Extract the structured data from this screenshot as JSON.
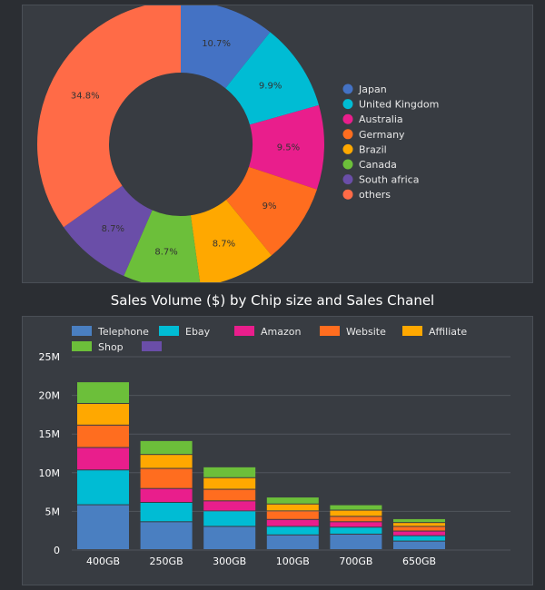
{
  "chart_data": [
    {
      "type": "pie",
      "title": "",
      "slices": [
        {
          "name": "Japan",
          "value": 10.7,
          "label": "10.7%",
          "color": "#4472c4"
        },
        {
          "name": "United Kingdom",
          "value": 9.9,
          "label": "9.9%",
          "color": "#00bcd4"
        },
        {
          "name": "Australia",
          "value": 9.5,
          "label": "9.5%",
          "color": "#e91e8c"
        },
        {
          "name": "Germany",
          "value": 9,
          "label": "9%",
          "color": "#ff6d1f"
        },
        {
          "name": "Brazil",
          "value": 8.7,
          "label": "8.7%",
          "color": "#ffa800"
        },
        {
          "name": "Canada",
          "value": 8.7,
          "label": "8.7%",
          "color": "#6cbf3a"
        },
        {
          "name": "South africa",
          "value": 8.7,
          "label": "8.7%",
          "color": "#6a4ea8"
        },
        {
          "name": "others",
          "value": 34.8,
          "label": "34.8%",
          "color": "#ff6b47"
        }
      ],
      "hole": 0.5,
      "legend_position": "right"
    },
    {
      "type": "bar",
      "stacked": true,
      "title": "Sales Volume ($) by Chip size and Sales Chanel",
      "categories": [
        "400GB",
        "250GB",
        "300GB",
        "100GB",
        "700GB",
        "650GB"
      ],
      "y_ticks": [
        "0",
        "5M",
        "10M",
        "15M",
        "20M",
        "25M"
      ],
      "ylim": [
        0,
        25
      ],
      "grid": true,
      "legend_position": "top",
      "series": [
        {
          "name": "Telephone",
          "color": "#4a7fc1",
          "values": [
            5.8,
            3.6,
            3.0,
            1.9,
            2.0,
            1.1
          ]
        },
        {
          "name": "Ebay",
          "color": "#00bcd4",
          "values": [
            4.5,
            2.5,
            2.0,
            1.1,
            0.9,
            0.7
          ]
        },
        {
          "name": "Amazon",
          "color": "#e91e8c",
          "values": [
            2.9,
            1.8,
            1.3,
            0.9,
            0.7,
            0.6
          ]
        },
        {
          "name": "Website",
          "color": "#ff6d1f",
          "values": [
            2.9,
            2.6,
            1.5,
            1.1,
            0.7,
            0.6
          ]
        },
        {
          "name": "Affiliate",
          "color": "#ffa800",
          "values": [
            2.8,
            1.8,
            1.5,
            0.9,
            0.8,
            0.5
          ]
        },
        {
          "name": "Shop",
          "color": "#6cbf3a",
          "values": [
            2.8,
            1.8,
            1.4,
            0.9,
            0.7,
            0.5
          ]
        },
        {
          "name": "",
          "color": "#6a4ea8",
          "values": [
            0,
            0,
            0,
            0,
            0,
            0
          ]
        }
      ]
    }
  ]
}
